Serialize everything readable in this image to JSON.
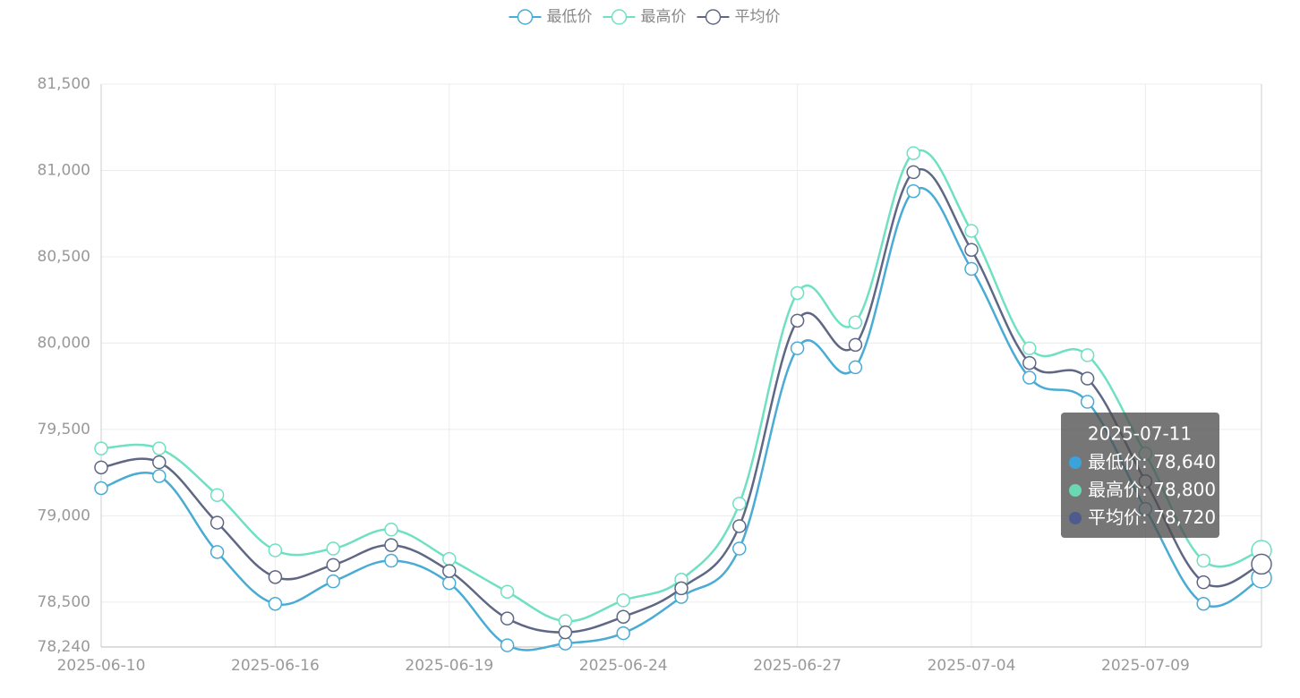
{
  "chart_data": {
    "type": "line",
    "categories": [
      "2025-06-10",
      null,
      null,
      "2025-06-16",
      null,
      null,
      "2025-06-19",
      null,
      null,
      "2025-06-24",
      null,
      null,
      "2025-06-27",
      null,
      null,
      "2025-07-04",
      null,
      null,
      "2025-07-09",
      null,
      "2025-07-11"
    ],
    "series": [
      {
        "name": "最低价",
        "color": "#4aabd4",
        "marker_color": "#3ba3dc",
        "values": [
          79160,
          79230,
          78790,
          78490,
          78620,
          78740,
          78610,
          78250,
          78260,
          78320,
          78530,
          78810,
          79970,
          79860,
          80880,
          80430,
          79800,
          79660,
          79040,
          78490,
          78640
        ],
        "value_labels": [
          null,
          null,
          null,
          null,
          null,
          null,
          null,
          null,
          null,
          null,
          null,
          null,
          null,
          null,
          null,
          null,
          null,
          null,
          null,
          null,
          "78,640"
        ]
      },
      {
        "name": "最高价",
        "color": "#6fe0c2",
        "marker_color": "#6ad8b5",
        "values": [
          79390,
          79390,
          79120,
          78800,
          78810,
          78920,
          78750,
          78560,
          78390,
          78510,
          78630,
          79070,
          80290,
          80120,
          81100,
          80650,
          79970,
          79930,
          79360,
          78740,
          78800
        ],
        "value_labels": [
          null,
          null,
          null,
          null,
          null,
          null,
          null,
          null,
          null,
          null,
          null,
          null,
          null,
          null,
          null,
          null,
          null,
          null,
          null,
          null,
          "78,800"
        ]
      },
      {
        "name": "平均价",
        "color": "#5f6785",
        "marker_color": "#4e5b8f",
        "values": [
          79280,
          79310,
          78960,
          78645,
          78715,
          78830,
          78680,
          78405,
          78325,
          78415,
          78580,
          78940,
          80130,
          79990,
          80990,
          80540,
          79885,
          79795,
          79200,
          78615,
          78720
        ],
        "value_labels": [
          null,
          null,
          null,
          null,
          null,
          null,
          null,
          null,
          null,
          null,
          null,
          null,
          null,
          null,
          null,
          null,
          null,
          null,
          null,
          null,
          "78,720"
        ]
      }
    ],
    "ylim": [
      78240,
      81500
    ],
    "yticks": [
      {
        "value": 78240,
        "label": "78,240"
      },
      {
        "value": 78500,
        "label": "78,500"
      },
      {
        "value": 79000,
        "label": "79,000"
      },
      {
        "value": 79500,
        "label": "79,500"
      },
      {
        "value": 80000,
        "label": "80,000"
      },
      {
        "value": 80500,
        "label": "80,500"
      },
      {
        "value": 81000,
        "label": "81,000"
      },
      {
        "value": 81500,
        "label": "81,500"
      }
    ],
    "grid": true,
    "legend": "top",
    "smooth": true,
    "tooltip_index": 20
  }
}
